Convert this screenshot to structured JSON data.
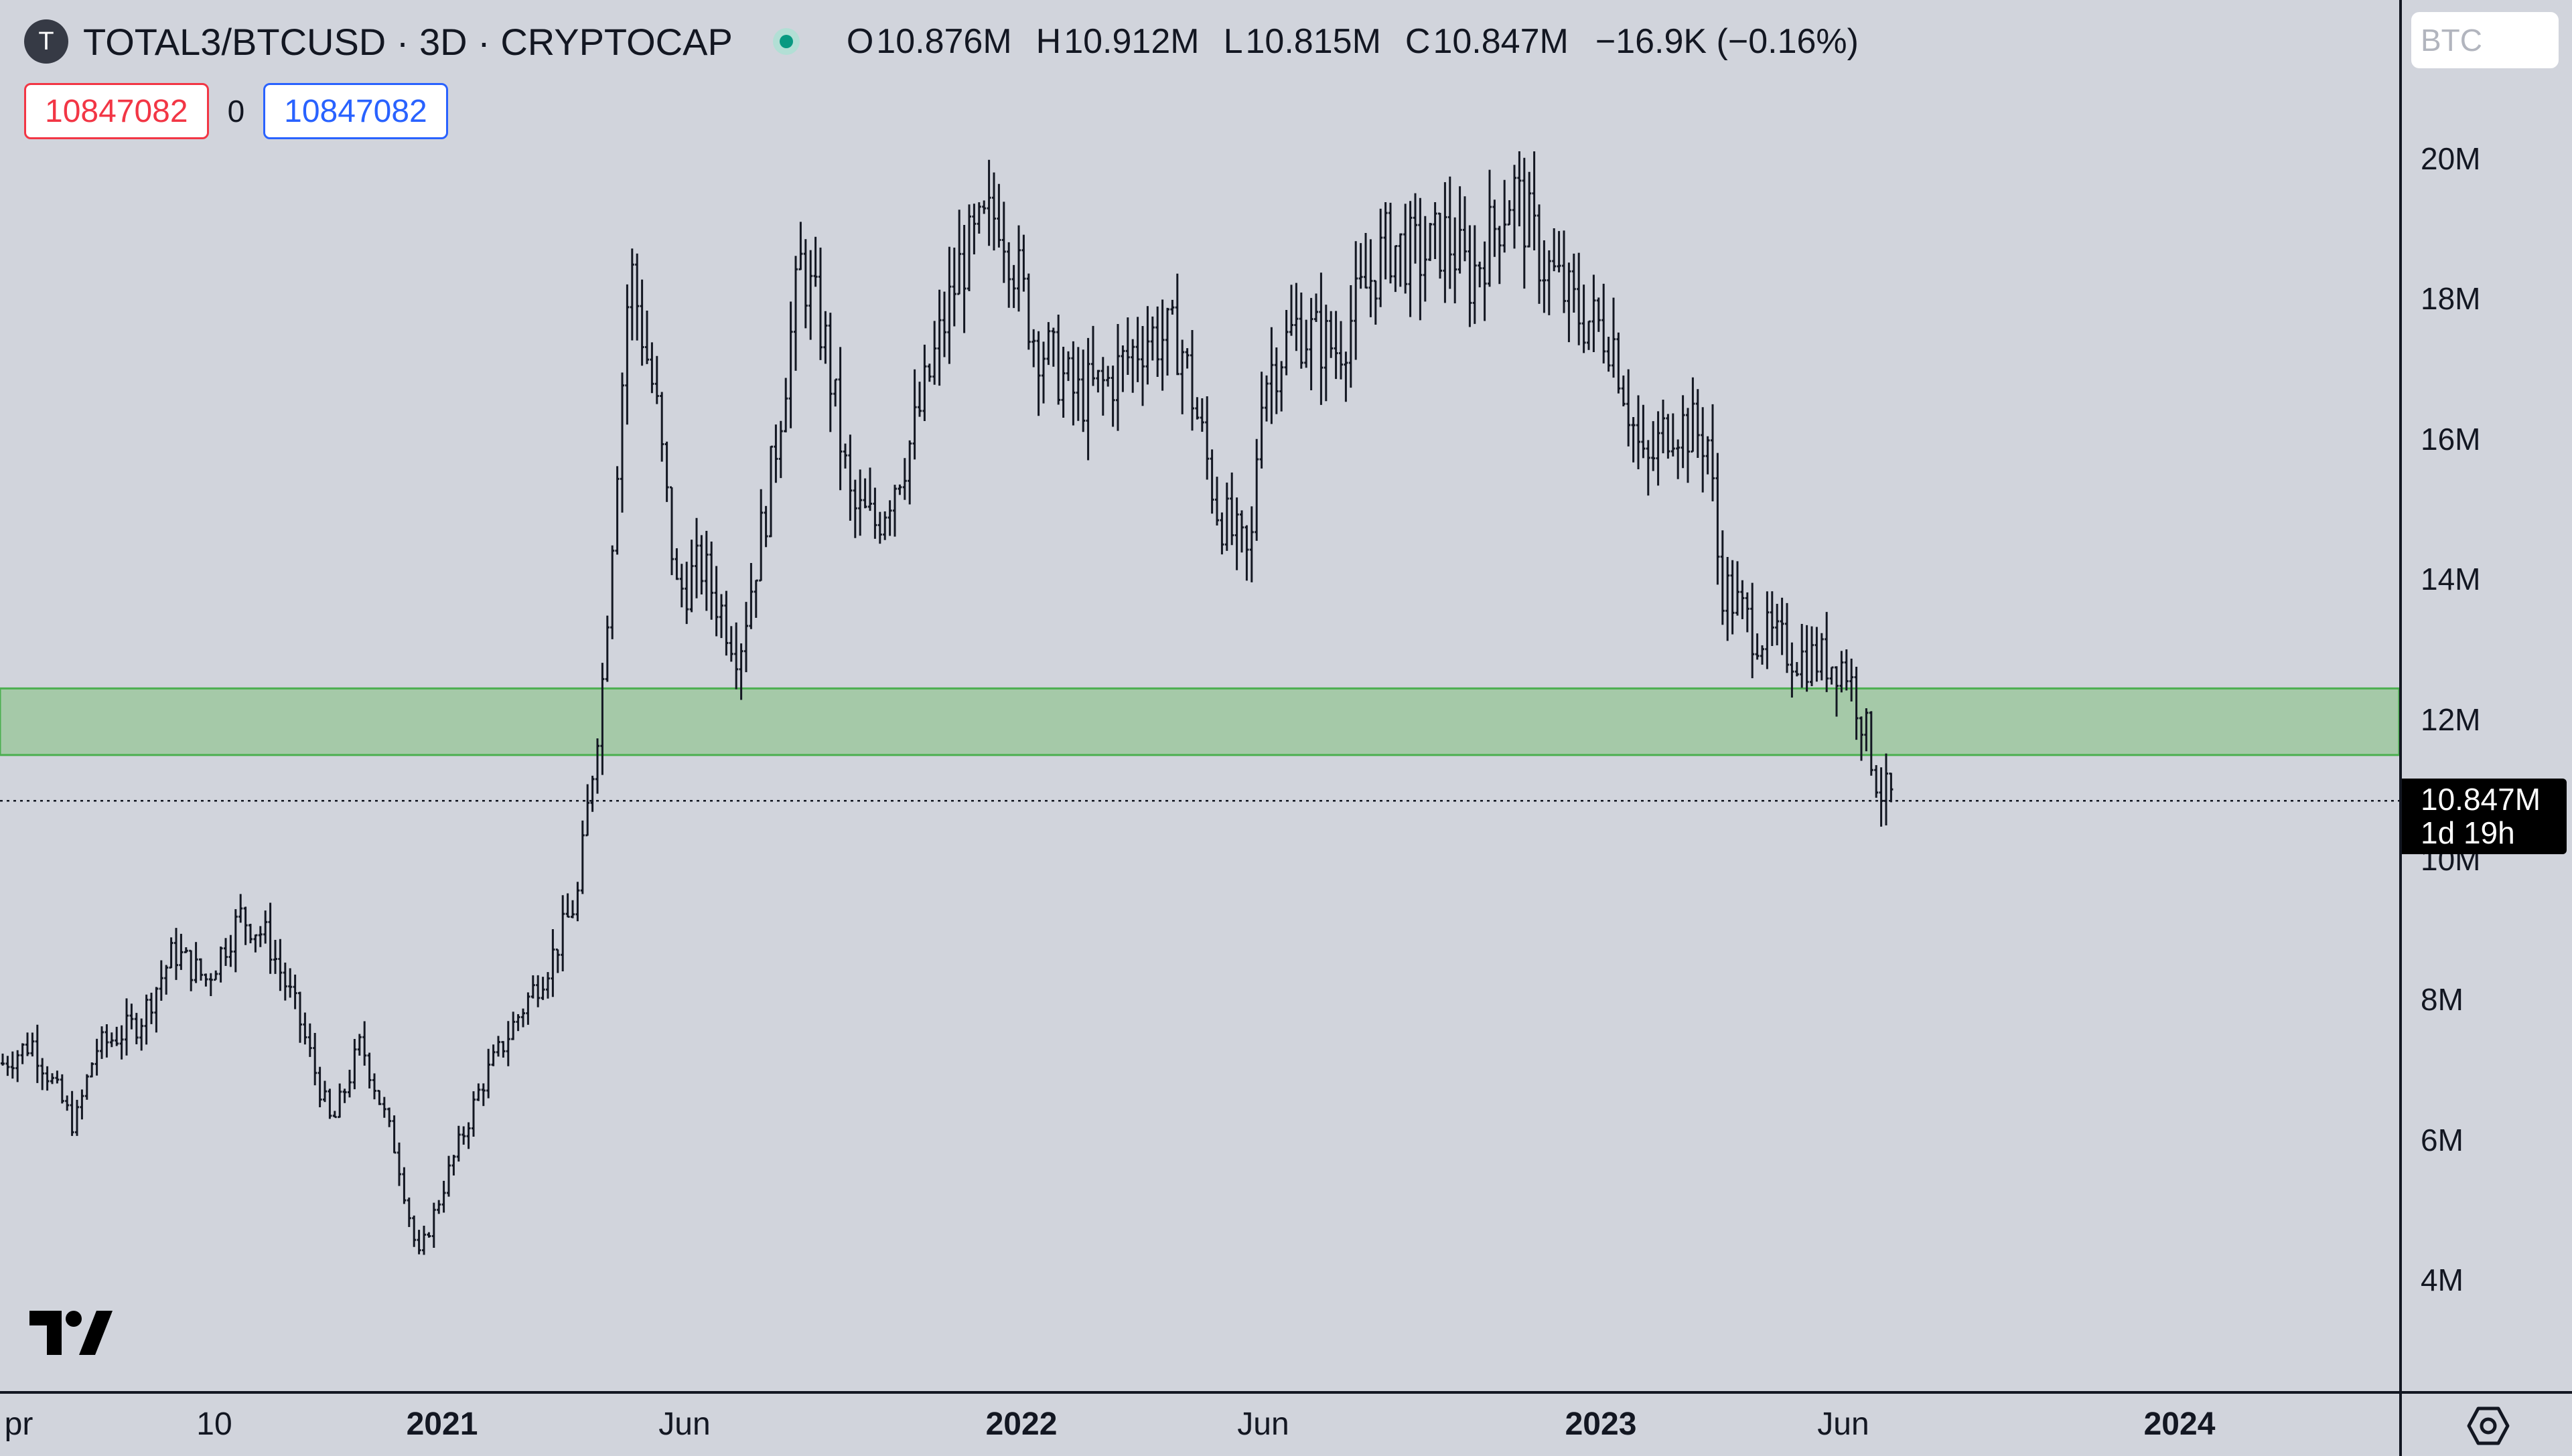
{
  "header": {
    "logo_letter": "T",
    "title": "TOTAL3/BTCUSD · 3D · CRYPTOCAP",
    "ohlc": [
      {
        "key": "O",
        "value": "10.876M"
      },
      {
        "key": "H",
        "value": "10.912M"
      },
      {
        "key": "L",
        "value": "10.815M"
      },
      {
        "key": "C",
        "value": "10.847M"
      },
      {
        "key": "",
        "value": "−16.9K (−0.16%)"
      }
    ]
  },
  "inputs": {
    "sell_value": "10847082",
    "spread": "0",
    "buy_value": "10847082"
  },
  "price_axis": {
    "scale_button": "BTC",
    "labels": [
      "20M",
      "18M",
      "16M",
      "14M",
      "12M",
      "10M",
      "8M",
      "6M",
      "4M"
    ],
    "current_price": "10.847M",
    "countdown": "1d 19h"
  },
  "time_axis": {
    "labels": [
      {
        "text": "pr",
        "bold": false
      },
      {
        "text": "10",
        "bold": false
      },
      {
        "text": "2021",
        "bold": true
      },
      {
        "text": "Jun",
        "bold": false
      },
      {
        "text": "2022",
        "bold": true
      },
      {
        "text": "Jun",
        "bold": false
      },
      {
        "text": "2023",
        "bold": true
      },
      {
        "text": "Jun",
        "bold": false
      },
      {
        "text": "2024",
        "bold": true
      }
    ]
  },
  "chart_data": {
    "type": "ohlc-bar",
    "symbol": "TOTAL3/BTCUSD",
    "interval": "3D",
    "exchange": "CRYPTOCAP",
    "y_unit": "BTC",
    "ylim": [
      2.5,
      21
    ],
    "y_scale": "linear",
    "support_zone": {
      "low": 11.5,
      "high": 12.45,
      "color": "#a5c9a8"
    },
    "current_price": 10.847,
    "price_path": [
      [
        "2020-04-22",
        7.1
      ],
      [
        "2020-05-10",
        7.4
      ],
      [
        "2020-06-05",
        6.2
      ],
      [
        "2020-06-18",
        7.3
      ],
      [
        "2020-07-15",
        7.7
      ],
      [
        "2020-08-05",
        8.7
      ],
      [
        "2020-08-25",
        8.3
      ],
      [
        "2020-09-15",
        9.2
      ],
      [
        "2020-10-01",
        8.9
      ],
      [
        "2020-10-20",
        7.8
      ],
      [
        "2020-11-10",
        6.2
      ],
      [
        "2020-11-28",
        7.4
      ],
      [
        "2020-12-20",
        5.8
      ],
      [
        "2021-01-02",
        4.3
      ],
      [
        "2021-01-20",
        5.5
      ],
      [
        "2021-02-10",
        6.8
      ],
      [
        "2021-03-05",
        7.8
      ],
      [
        "2021-03-25",
        8.6
      ],
      [
        "2021-04-10",
        9.5
      ],
      [
        "2021-04-25",
        12.5
      ],
      [
        "2021-05-12",
        18.5
      ],
      [
        "2021-05-28",
        16.5
      ],
      [
        "2021-06-10",
        13.8
      ],
      [
        "2021-06-25",
        14.2
      ],
      [
        "2021-07-18",
        13.0
      ],
      [
        "2021-08-05",
        15.2
      ],
      [
        "2021-08-25",
        18.5
      ],
      [
        "2021-09-08",
        17.5
      ],
      [
        "2021-09-25",
        15.0
      ],
      [
        "2021-10-10",
        14.8
      ],
      [
        "2021-11-01",
        16.0
      ],
      [
        "2021-12-01",
        18.5
      ],
      [
        "2021-12-25",
        19.3
      ],
      [
        "2022-01-15",
        17.5
      ],
      [
        "2022-02-10",
        16.6
      ],
      [
        "2022-03-01",
        16.8
      ],
      [
        "2022-03-25",
        17.5
      ],
      [
        "2022-04-15",
        17.4
      ],
      [
        "2022-05-08",
        15.0
      ],
      [
        "2022-05-28",
        14.2
      ],
      [
        "2022-06-03",
        16.8
      ],
      [
        "2022-06-25",
        17.6
      ],
      [
        "2022-07-20",
        17.3
      ],
      [
        "2022-08-20",
        18.8
      ],
      [
        "2022-09-10",
        18.6
      ],
      [
        "2022-09-25",
        18.9
      ],
      [
        "2022-10-10",
        18.3
      ],
      [
        "2022-11-05",
        19.6
      ],
      [
        "2022-11-22",
        18.6
      ],
      [
        "2022-12-15",
        17.8
      ],
      [
        "2023-01-05",
        17.5
      ],
      [
        "2023-01-25",
        15.5
      ],
      [
        "2023-02-10",
        16.3
      ],
      [
        "2023-03-05",
        16.0
      ],
      [
        "2023-03-12",
        14.0
      ],
      [
        "2023-04-01",
        13.3
      ],
      [
        "2023-05-01",
        12.9
      ],
      [
        "2023-05-28",
        12.8
      ],
      [
        "2023-06-08",
        12.0
      ],
      [
        "2023-06-18",
        11.0
      ],
      [
        "2023-06-28",
        10.85
      ]
    ]
  },
  "colors": {
    "background": "#d1d4dc",
    "bars": "#131722",
    "zone_fill": "#a5c9a8",
    "zone_border": "#4caf50",
    "sell_box": "#f23645",
    "buy_box": "#2962ff",
    "status_dot": "#089981"
  },
  "icons": {
    "brand_logo": "tradingview-logo",
    "settings": "gear-icon",
    "market_status": "market-open-dot"
  }
}
